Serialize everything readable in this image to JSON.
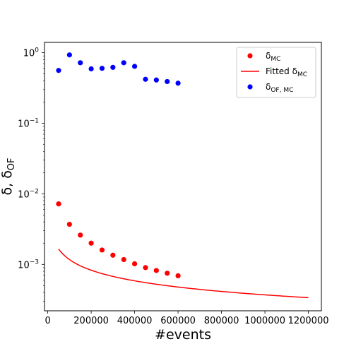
{
  "chart_data": {
    "type": "scatter",
    "title": "",
    "xlabel": "#events",
    "ylabel_main": "δ, δ",
    "ylabel_sub": "OF",
    "xscale": "linear",
    "yscale": "log",
    "xlim": [
      -15000,
      1260000
    ],
    "ylim": [
      0.00022,
      1.4
    ],
    "grid": false,
    "legend_position": "top-right",
    "x_ticks": [
      {
        "value": 0,
        "label": "0"
      },
      {
        "value": 200000,
        "label": "200000"
      },
      {
        "value": 400000,
        "label": "400000"
      },
      {
        "value": 600000,
        "label": "600000"
      },
      {
        "value": 800000,
        "label": "800000"
      },
      {
        "value": 1000000,
        "label": "1000000"
      },
      {
        "value": 1200000,
        "label": "1200000"
      }
    ],
    "y_ticks": [
      {
        "value": 0.001,
        "label_base": "10",
        "label_exp": "−3"
      },
      {
        "value": 0.01,
        "label_base": "10",
        "label_exp": "−2"
      },
      {
        "value": 0.1,
        "label_base": "10",
        "label_exp": "−1"
      },
      {
        "value": 1,
        "label_base": "10",
        "label_exp": "0"
      }
    ],
    "series": [
      {
        "key": "delta_mc",
        "name_main": "δ",
        "name_sub": "MC",
        "kind": "points",
        "color": "#ff0000",
        "x": [
          50000,
          100000,
          150000,
          200000,
          250000,
          300000,
          350000,
          400000,
          450000,
          500000,
          550000,
          600000
        ],
        "y": [
          0.0072,
          0.0037,
          0.0026,
          0.002,
          0.0016,
          0.00135,
          0.00117,
          0.00102,
          0.0009,
          0.00082,
          0.00075,
          0.00069
        ]
      },
      {
        "key": "fitted_delta_mc",
        "name_main": "Fitted δ",
        "name_sub": "MC",
        "kind": "line",
        "color": "#ff0000",
        "function": "a/sqrt(x)",
        "coefficient_a": 0.37,
        "x_range": [
          50000,
          1200000
        ]
      },
      {
        "key": "delta_of_mc",
        "name_main": "δ",
        "name_sub": "OF, MC",
        "kind": "points",
        "color": "#0000ff",
        "x": [
          50000,
          100000,
          150000,
          200000,
          250000,
          300000,
          350000,
          400000,
          450000,
          500000,
          550000,
          600000
        ],
        "y": [
          0.56,
          0.93,
          0.72,
          0.59,
          0.6,
          0.62,
          0.72,
          0.64,
          0.42,
          0.41,
          0.39,
          0.37
        ]
      }
    ]
  }
}
